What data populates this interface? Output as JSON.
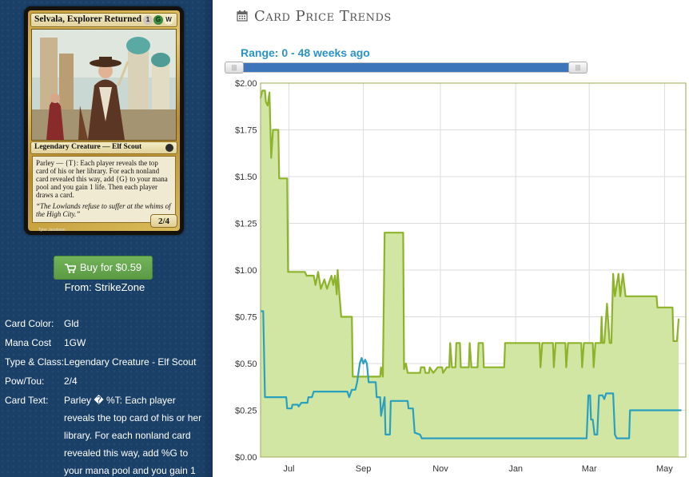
{
  "card": {
    "name": "Selvala, Explorer Returned",
    "mana_symbols": [
      {
        "label": "1",
        "color": "colorless"
      },
      {
        "label": "G",
        "color": "green"
      },
      {
        "label": "W",
        "color": "white"
      }
    ],
    "type_line": "Legendary Creature — Elf Scout",
    "rules_text": "Parley — {T}: Each player reveals the top card of his or her library. For each nonland card revealed this way, add {G} to your mana pool and you gain 1 life. Then each player draws a card.",
    "flavor_text": "“The Lowlands refuse to suffer at the whims of the High City.”",
    "power_toughness": "2/4",
    "artist": "Tyler Jacobson",
    "icon_tap": "tap-symbol-icon",
    "icon_set": "set-symbol-icon"
  },
  "buy": {
    "label": "Buy for $0.59",
    "icon": "shopping-cart-icon",
    "seller": "From: StrikeZone",
    "color": "#5fa24a"
  },
  "details": [
    {
      "label": "Card Color:",
      "value": "Gld"
    },
    {
      "label": "Mana Cost",
      "value": "1GW"
    },
    {
      "label": "Type & Class:",
      "value": "Legendary Creature - Elf Scout"
    },
    {
      "label": "Pow/Tou:",
      "value": "2/4"
    },
    {
      "label": "Card Text:",
      "value": "Parley � %T: Each player reveals the top card of his or her library. For each nonland card revealed this way, add %G to your mana pool and you gain 1"
    }
  ],
  "panel": {
    "title": "Card Price Trends",
    "title_icon": "calendar-icon",
    "range_label": "Range: 0 - 48 weeks ago",
    "slider_left_handle": "slider-left-handle",
    "slider_right_handle": "slider-right-handle",
    "slider_range_fraction": [
      0,
      0.97
    ]
  },
  "chart_data": {
    "type": "line",
    "title": "",
    "xlabel": "",
    "ylabel": "",
    "x_tick_labels": [
      "Jul",
      "Sep",
      "Nov",
      "Jan",
      "Mar",
      "May"
    ],
    "y_tick_labels": [
      "$0.00",
      "$0.25",
      "$0.50",
      "$0.75",
      "$1.00",
      "$1.25",
      "$1.50",
      "$1.75",
      "$2.00"
    ],
    "ylim": [
      0,
      2.0
    ],
    "grid": true,
    "x_domain_weeks": [
      0,
      48
    ],
    "x_tick_weeks": [
      3.2,
      11.6,
      20.3,
      28.8,
      37.1,
      45.6
    ],
    "series": [
      {
        "color": "#8db32a",
        "fill": "#d2e6a4",
        "points": [
          [
            0,
            1.92
          ],
          [
            0.2,
            1.96
          ],
          [
            0.5,
            1.96
          ],
          [
            0.6,
            1.9
          ],
          [
            0.8,
            1.88
          ],
          [
            1.0,
            1.95
          ],
          [
            1.2,
            1.6
          ],
          [
            1.4,
            1.75
          ],
          [
            2.0,
            1.75
          ],
          [
            2.1,
            1.49
          ],
          [
            3.0,
            1.49
          ],
          [
            3.1,
            0.99
          ],
          [
            5.0,
            0.99
          ],
          [
            5.2,
            0.97
          ],
          [
            6.0,
            0.97
          ],
          [
            6.2,
            0.92
          ],
          [
            6.5,
            0.99
          ],
          [
            6.8,
            0.9
          ],
          [
            7.2,
            0.95
          ],
          [
            7.5,
            0.9
          ],
          [
            8.0,
            0.97
          ],
          [
            8.2,
            0.92
          ],
          [
            8.4,
            0.97
          ],
          [
            8.6,
            0.87
          ],
          [
            8.7,
            1.0
          ],
          [
            8.9,
            0.87
          ],
          [
            9.1,
            0.75
          ],
          [
            10.3,
            0.75
          ],
          [
            10.4,
            0.43
          ],
          [
            13.5,
            0.43
          ],
          [
            13.6,
            0.48
          ],
          [
            13.8,
            0.43
          ],
          [
            14.0,
            1.2
          ],
          [
            16.1,
            1.2
          ],
          [
            16.2,
            0.47
          ],
          [
            16.4,
            0.5
          ],
          [
            16.6,
            0.45
          ],
          [
            18.0,
            0.45
          ],
          [
            18.1,
            0.48
          ],
          [
            18.5,
            0.48
          ],
          [
            18.6,
            0.45
          ],
          [
            19.0,
            0.45
          ],
          [
            19.1,
            0.48
          ],
          [
            19.5,
            0.45
          ],
          [
            20.0,
            0.48
          ],
          [
            20.5,
            0.48
          ],
          [
            20.6,
            0.45
          ],
          [
            21.0,
            0.48
          ],
          [
            21.3,
            0.48
          ],
          [
            21.4,
            0.61
          ],
          [
            21.6,
            0.48
          ],
          [
            22.0,
            0.48
          ],
          [
            22.1,
            0.61
          ],
          [
            22.5,
            0.61
          ],
          [
            22.6,
            0.48
          ],
          [
            23.5,
            0.48
          ],
          [
            23.6,
            0.61
          ],
          [
            23.8,
            0.48
          ],
          [
            24.5,
            0.48
          ],
          [
            24.6,
            0.61
          ],
          [
            25.1,
            0.61
          ],
          [
            25.2,
            0.48
          ],
          [
            27.5,
            0.48
          ],
          [
            27.6,
            0.61
          ],
          [
            31.5,
            0.61
          ],
          [
            31.6,
            0.48
          ],
          [
            31.8,
            0.61
          ],
          [
            33.0,
            0.61
          ],
          [
            33.1,
            0.48
          ],
          [
            33.3,
            0.61
          ],
          [
            34.4,
            0.61
          ],
          [
            34.5,
            0.48
          ],
          [
            34.7,
            0.61
          ],
          [
            36.2,
            0.61
          ],
          [
            36.3,
            0.48
          ],
          [
            36.5,
            0.61
          ],
          [
            37.5,
            0.61
          ],
          [
            37.6,
            0.48
          ],
          [
            37.8,
            0.61
          ],
          [
            38.4,
            0.61
          ],
          [
            38.5,
            0.75
          ],
          [
            38.6,
            0.61
          ],
          [
            38.8,
            0.61
          ],
          [
            39.1,
            0.82
          ],
          [
            39.4,
            0.61
          ],
          [
            39.6,
            0.61
          ],
          [
            39.8,
            0.98
          ],
          [
            40.0,
            0.86
          ],
          [
            40.4,
            0.98
          ],
          [
            40.6,
            0.86
          ],
          [
            40.9,
            0.98
          ],
          [
            41.2,
            0.86
          ],
          [
            44.7,
            0.86
          ],
          [
            44.8,
            0.8
          ],
          [
            46.5,
            0.8
          ],
          [
            46.6,
            0.62
          ],
          [
            47.0,
            0.62
          ],
          [
            47.2,
            0.74
          ]
        ]
      },
      {
        "color": "#2aa0bf",
        "points": [
          [
            0,
            0.78
          ],
          [
            0.3,
            0.78
          ],
          [
            0.5,
            0.32
          ],
          [
            2.9,
            0.32
          ],
          [
            3.0,
            0.26
          ],
          [
            3.5,
            0.26
          ],
          [
            3.6,
            0.28
          ],
          [
            4.2,
            0.28
          ],
          [
            4.3,
            0.27
          ],
          [
            4.6,
            0.29
          ],
          [
            5.3,
            0.29
          ],
          [
            5.4,
            0.32
          ],
          [
            5.8,
            0.32
          ],
          [
            6.0,
            0.35
          ],
          [
            9.8,
            0.35
          ],
          [
            10.0,
            0.32
          ],
          [
            10.3,
            0.36
          ],
          [
            10.7,
            0.36
          ],
          [
            10.9,
            0.4
          ],
          [
            11.2,
            0.5
          ],
          [
            11.4,
            0.53
          ],
          [
            11.6,
            0.5
          ],
          [
            11.8,
            0.52
          ],
          [
            12.0,
            0.5
          ],
          [
            12.2,
            0.4
          ],
          [
            13.0,
            0.4
          ],
          [
            13.1,
            0.32
          ],
          [
            13.5,
            0.32
          ],
          [
            13.6,
            0.22
          ],
          [
            14.0,
            0.32
          ],
          [
            14.1,
            0.12
          ],
          [
            14.6,
            0.12
          ],
          [
            14.7,
            0.3
          ],
          [
            16.6,
            0.3
          ],
          [
            16.7,
            0.26
          ],
          [
            17.2,
            0.26
          ],
          [
            17.4,
            0.13
          ],
          [
            18.0,
            0.12
          ],
          [
            18.2,
            0.1
          ],
          [
            36.8,
            0.1
          ],
          [
            37.0,
            0.33
          ],
          [
            37.2,
            0.33
          ],
          [
            37.3,
            0.2
          ],
          [
            37.5,
            0.2
          ],
          [
            37.7,
            0.12
          ],
          [
            38.0,
            0.12
          ],
          [
            38.2,
            0.33
          ],
          [
            38.6,
            0.33
          ],
          [
            38.8,
            0.31
          ],
          [
            39.0,
            0.34
          ],
          [
            39.8,
            0.34
          ],
          [
            40.0,
            0.12
          ],
          [
            40.2,
            0.1
          ],
          [
            41.6,
            0.1
          ],
          [
            41.7,
            0.25
          ],
          [
            47.5,
            0.25
          ]
        ]
      }
    ]
  }
}
